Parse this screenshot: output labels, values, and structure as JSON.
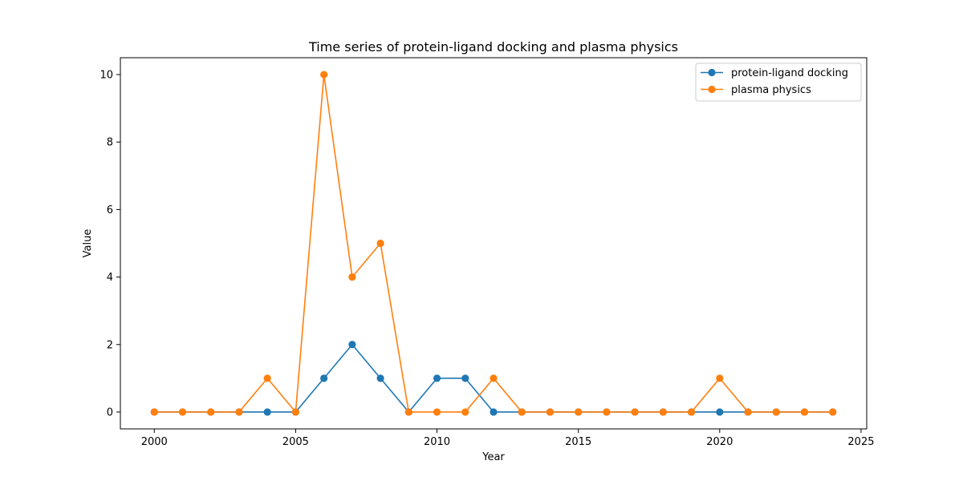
{
  "chart_data": {
    "type": "line",
    "title": "Time series of protein-ligand docking and plasma physics",
    "xlabel": "Year",
    "ylabel": "Value",
    "x": [
      2000,
      2001,
      2002,
      2003,
      2004,
      2005,
      2006,
      2007,
      2008,
      2009,
      2010,
      2011,
      2012,
      2013,
      2014,
      2015,
      2016,
      2017,
      2018,
      2019,
      2020,
      2021,
      2022,
      2023,
      2024
    ],
    "xlim": [
      1998.8,
      2025.2
    ],
    "ylim": [
      -0.5,
      10.5
    ],
    "xticks": [
      2000,
      2005,
      2010,
      2015,
      2020,
      2025
    ],
    "yticks": [
      0,
      2,
      4,
      6,
      8,
      10
    ],
    "xtick_labels": [
      "2000",
      "2005",
      "2010",
      "2015",
      "2020",
      "2025"
    ],
    "ytick_labels": [
      "0",
      "2",
      "4",
      "6",
      "8",
      "10"
    ],
    "grid": false,
    "legend_position": "top-right",
    "series": [
      {
        "name": "protein-ligand docking",
        "color": "#1f77b4",
        "values": [
          0,
          0,
          0,
          0,
          0,
          0,
          1,
          2,
          1,
          0,
          1,
          1,
          0,
          0,
          0,
          0,
          0,
          0,
          0,
          0,
          0,
          0,
          0,
          0,
          0
        ]
      },
      {
        "name": "plasma physics",
        "color": "#ff7f0e",
        "values": [
          0,
          0,
          0,
          0,
          1,
          0,
          10,
          4,
          5,
          0,
          0,
          0,
          1,
          0,
          0,
          0,
          0,
          0,
          0,
          0,
          1,
          0,
          0,
          0,
          0
        ]
      }
    ]
  }
}
